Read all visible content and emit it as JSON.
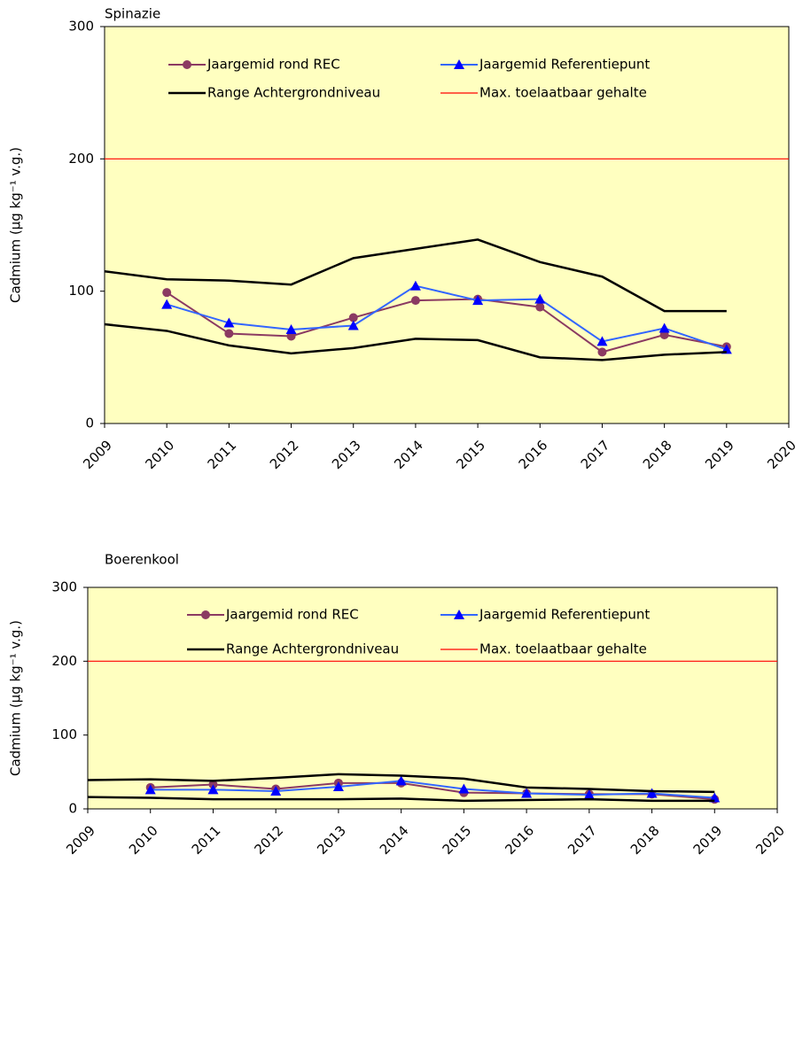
{
  "chart_data": [
    {
      "type": "line",
      "title": "Spinazie",
      "y_label": "Cadmium  (µg kg⁻¹ v.g.)",
      "xlim": [
        2009,
        2020
      ],
      "xticks": [
        2009,
        2010,
        2011,
        2012,
        2013,
        2014,
        2015,
        2016,
        2017,
        2018,
        2019,
        2020
      ],
      "ylim": [
        0,
        300
      ],
      "yticks": [
        0,
        100,
        200,
        300
      ],
      "background": "#ffffc0",
      "x": [
        2009,
        2010,
        2011,
        2012,
        2013,
        2014,
        2015,
        2016,
        2017,
        2018,
        2019
      ],
      "series": [
        {
          "name": "Jaargemid rond REC",
          "color": "#8b3a62",
          "marker": "circle",
          "values": [
            null,
            99,
            68,
            66,
            80,
            93,
            94,
            88,
            54,
            67,
            58
          ]
        },
        {
          "name": "Jaargemid Referentiepunt",
          "color": "#3366ff",
          "marker": "triangle",
          "values": [
            null,
            90,
            76,
            71,
            74,
            104,
            93,
            94,
            62,
            72,
            56
          ]
        },
        {
          "name": "Range Achtergrondniveau",
          "color": "#000000",
          "high": [
            115,
            109,
            108,
            105,
            125,
            132,
            139,
            122,
            111,
            85,
            85
          ],
          "low": [
            75,
            70,
            59,
            53,
            57,
            64,
            63,
            50,
            48,
            52,
            54
          ]
        },
        {
          "name": "Max. toelaatbaar gehalte",
          "color": "#ff0000",
          "value": 200
        }
      ]
    },
    {
      "type": "line",
      "title": "Boerenkool",
      "y_label": "Cadmium  (µg kg⁻¹ v.g.)",
      "xlim": [
        2009,
        2020
      ],
      "xticks": [
        2009,
        2010,
        2011,
        2012,
        2013,
        2014,
        2015,
        2016,
        2017,
        2018,
        2019,
        2020
      ],
      "ylim": [
        0,
        300
      ],
      "yticks": [
        0,
        100,
        200,
        300
      ],
      "background": "#ffffc0",
      "x": [
        2009,
        2010,
        2011,
        2012,
        2013,
        2014,
        2015,
        2016,
        2017,
        2018,
        2019
      ],
      "series": [
        {
          "name": "Jaargemid rond REC",
          "color": "#8b3a62",
          "marker": "circle",
          "values": [
            null,
            29,
            33,
            27,
            35,
            35,
            22,
            21,
            20,
            20,
            13
          ]
        },
        {
          "name": "Jaargemid Referentiepunt",
          "color": "#3366ff",
          "marker": "triangle",
          "values": [
            null,
            26,
            26,
            24,
            30,
            38,
            27,
            21,
            19,
            21,
            15
          ]
        },
        {
          "name": "Range Achtergrondniveau",
          "color": "#000000",
          "high": [
            39,
            40,
            38,
            42,
            47,
            45,
            41,
            29,
            27,
            24,
            23
          ],
          "low": [
            16,
            15,
            13,
            13,
            13,
            14,
            11,
            12,
            13,
            11,
            11
          ]
        },
        {
          "name": "Max. toelaatbaar gehalte",
          "color": "#ff0000",
          "value": 200
        }
      ]
    }
  ]
}
